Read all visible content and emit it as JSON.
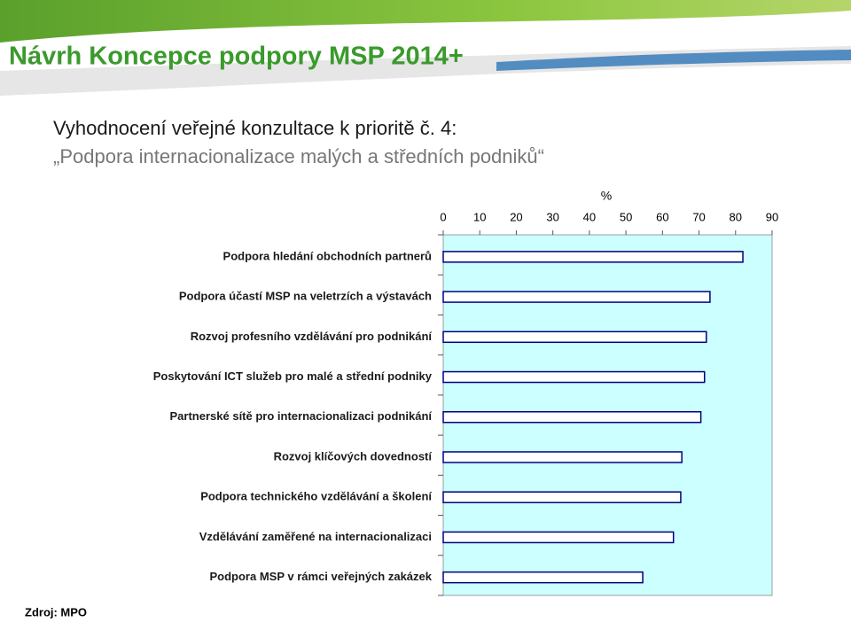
{
  "title": "Návrh Koncepce podpory MSP 2014+",
  "subtitle_1": "Vyhodnocení veřejné konzultace k prioritě č. 4:",
  "subtitle_2": "„Podpora internacionalizace malých a středních podniků“",
  "source": "Zdroj: MPO",
  "chart_data": {
    "type": "bar",
    "orientation": "horizontal",
    "x_label": "%",
    "categories": [
      "Podpora hledání obchodních partnerů",
      "Podpora účastí MSP na  veletrzích a výstavách",
      "Rozvoj profesního vzdělávání pro podnikání",
      "Poskytování ICT služeb pro malé a střední podniky",
      "Partnerské sítě pro internacionalizaci podnikání",
      "Rozvoj klíčových dovedností",
      "Podpora technického vzdělávání a školení",
      "Vzdělávání zaměřené na internacionalizaci",
      "Podpora MSP v rámci veřejných zakázek"
    ],
    "values": [
      82,
      73,
      72,
      71.5,
      70.5,
      65.3,
      65,
      63,
      54.6
    ],
    "color": "#ffffff",
    "edge_color": "#000080",
    "plot_background": "#ccffff",
    "xlim": [
      0,
      90
    ],
    "xticks": [
      0,
      10,
      20,
      30,
      40,
      50,
      60,
      70,
      80,
      90
    ]
  }
}
